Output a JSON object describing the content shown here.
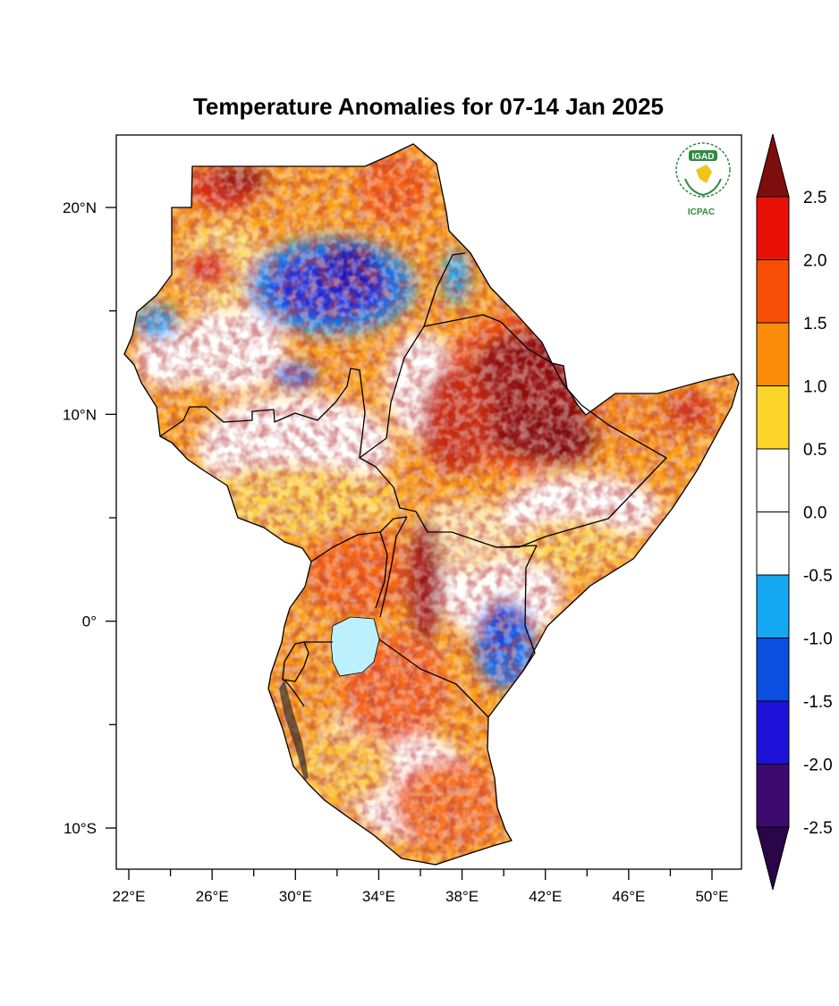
{
  "title": "Temperature Anomalies for 07-14 Jan 2025",
  "logo": {
    "top_text": "IGAD",
    "bottom_text": "ICPAC",
    "color": "#2e8b3e",
    "icon": "igad-icpac-laurel-logo"
  },
  "axes": {
    "x_ticks": [
      {
        "value": 22,
        "label": "22°E"
      },
      {
        "value": 26,
        "label": "26°E"
      },
      {
        "value": 30,
        "label": "30°E"
      },
      {
        "value": 34,
        "label": "34°E"
      },
      {
        "value": 38,
        "label": "38°E"
      },
      {
        "value": 42,
        "label": "42°E"
      },
      {
        "value": 46,
        "label": "46°E"
      },
      {
        "value": 50,
        "label": "50°E"
      }
    ],
    "x_minor_ticks": [
      24,
      28,
      32,
      36,
      40,
      44,
      48
    ],
    "y_ticks": [
      {
        "value": 20,
        "label": "20°N"
      },
      {
        "value": 10,
        "label": "10°N"
      },
      {
        "value": 0,
        "label": "0°"
      },
      {
        "value": -10,
        "label": "10°S"
      }
    ],
    "y_minor_ticks": [
      15,
      5,
      -5
    ],
    "lon_range": [
      21.3,
      51.4
    ],
    "lat_range": [
      -11.9,
      23.5
    ]
  },
  "colorbar": {
    "labels": [
      "2.5",
      "2.0",
      "1.5",
      "1.0",
      "0.5",
      "0.0",
      "-0.5",
      "-1.0",
      "-1.5",
      "-2.0",
      "-2.5"
    ],
    "colors": [
      "#fbd52a",
      "#ffffff",
      "#ffffff",
      "#15a8f2",
      "#0b4fe0",
      "#1f12d8",
      "#3d0a70"
    ],
    "colors_upper": [
      "#fa8c0a",
      "#f94e05",
      "#e81007",
      "#7e0e0e"
    ],
    "top_arrow_color": "#7e0e0e",
    "bottom_arrow_color": "#2a0548"
  },
  "legend_placement": "right"
}
